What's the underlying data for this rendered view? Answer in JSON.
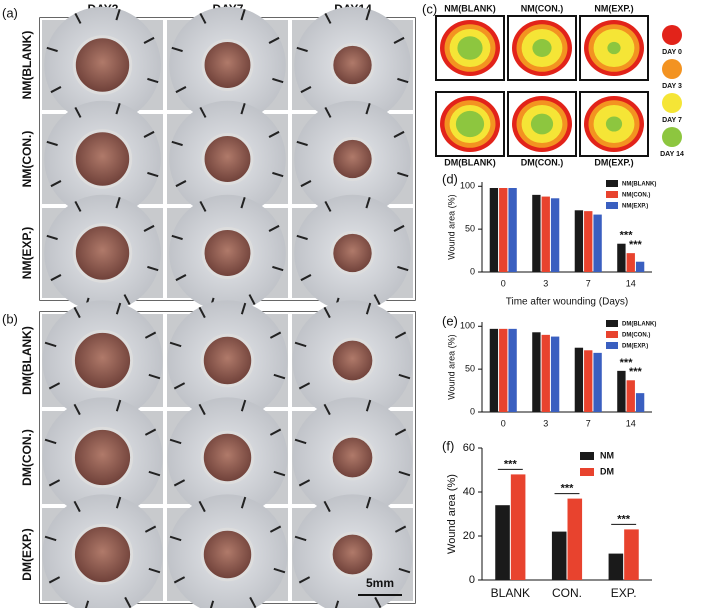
{
  "panel_labels": [
    "(a)",
    "(b)",
    "(c)",
    "(d)",
    "(e)",
    "(f)"
  ],
  "columns": [
    "DAY3",
    "DAY7",
    "DAY14"
  ],
  "panel_a_rows": [
    "NM(BLANK)",
    "NM(CON.)",
    "NM(EXP.)"
  ],
  "panel_b_rows": [
    "DM(BLANK)",
    "DM(CON.)",
    "DM(EXP.)"
  ],
  "scale_bar": "5mm",
  "panel_c": {
    "groups": [
      "NM(BLANK)",
      "NM(CON.)",
      "NM(EXP.)",
      "DM(BLANK)",
      "DM(CON.)",
      "DM(EXP.)"
    ],
    "legend": [
      {
        "name": "DAY 0",
        "color": "#e2231a"
      },
      {
        "name": "DAY 3",
        "color": "#f39321"
      },
      {
        "name": "DAY 7",
        "color": "#f5e536"
      },
      {
        "name": "DAY 14",
        "color": "#8dc63f"
      }
    ]
  },
  "chart_data": [
    {
      "type": "bar",
      "x_label": "Time after wounding (Days)",
      "y_label": "Wound area (%)",
      "categories": [
        "0",
        "3",
        "7",
        "14"
      ],
      "series": [
        {
          "name": "NM(BLANK)",
          "color": "#1a1a1a",
          "values": [
            98,
            90,
            72,
            33
          ]
        },
        {
          "name": "NM(CON.)",
          "color": "#e8432e",
          "values": [
            98,
            88,
            71,
            22
          ]
        },
        {
          "name": "NM(EXP.)",
          "color": "#3a5fc0",
          "values": [
            98,
            86,
            67,
            12
          ]
        }
      ],
      "ylim": [
        0,
        105
      ],
      "yticks": [
        0,
        50,
        100
      ],
      "annotations": [
        "***",
        "***"
      ]
    },
    {
      "type": "bar",
      "y_label": "Wound area (%)",
      "categories": [
        "0",
        "3",
        "7",
        "14"
      ],
      "series": [
        {
          "name": "DM(BLANK)",
          "color": "#1a1a1a",
          "values": [
            97,
            93,
            75,
            48
          ]
        },
        {
          "name": "DM(CON.)",
          "color": "#e8432e",
          "values": [
            97,
            90,
            72,
            37
          ]
        },
        {
          "name": "DM(EXP.)",
          "color": "#3a5fc0",
          "values": [
            97,
            88,
            69,
            22
          ]
        }
      ],
      "ylim": [
        0,
        105
      ],
      "yticks": [
        0,
        50,
        100
      ],
      "annotations": [
        "***",
        "***"
      ]
    },
    {
      "type": "bar",
      "y_label": "Wound area (%)",
      "categories": [
        "BLANK",
        "CON.",
        "EXP."
      ],
      "series": [
        {
          "name": "NM",
          "color": "#1a1a1a",
          "values": [
            34,
            22,
            12
          ]
        },
        {
          "name": "DM",
          "color": "#e8432e",
          "values": [
            48,
            37,
            23
          ]
        }
      ],
      "ylim": [
        0,
        60
      ],
      "yticks": [
        0,
        20,
        40,
        60
      ],
      "annotations": [
        "***",
        "***",
        "***"
      ]
    }
  ]
}
